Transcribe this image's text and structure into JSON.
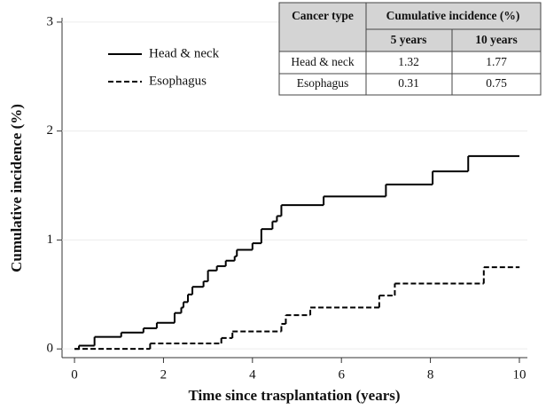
{
  "chart_data": {
    "type": "step",
    "xlabel": "Time since trasplantation (years)",
    "ylabel": "Cumulative incidence (%)",
    "xlim": [
      -0.28,
      10.18
    ],
    "ylim": [
      -0.08,
      3.04
    ],
    "xticks": [
      0,
      2,
      4,
      6,
      8,
      10
    ],
    "yticks": [
      0,
      1,
      2,
      3
    ],
    "grid": true,
    "legend_position": "upper left",
    "series": [
      {
        "name": "Head & neck",
        "color": "#000000",
        "line_style": "solid",
        "x": [
          0,
          0.1,
          0.45,
          1.05,
          1.55,
          1.85,
          2.25,
          2.4,
          2.45,
          2.55,
          2.65,
          2.9,
          3.0,
          3.2,
          3.4,
          3.6,
          3.65,
          4.0,
          4.2,
          4.45,
          4.55,
          4.65,
          5.6,
          7.0,
          8.05,
          8.85,
          10
        ],
        "values": [
          0,
          0.03,
          0.11,
          0.15,
          0.19,
          0.24,
          0.33,
          0.38,
          0.43,
          0.5,
          0.57,
          0.62,
          0.72,
          0.76,
          0.81,
          0.85,
          0.91,
          0.97,
          1.1,
          1.17,
          1.22,
          1.32,
          1.4,
          1.51,
          1.63,
          1.77,
          1.77
        ]
      },
      {
        "name": "Esophagus",
        "color": "#000000",
        "line_style": "dashed",
        "x": [
          0,
          1.7,
          3.3,
          3.55,
          4.65,
          4.75,
          5.3,
          6.85,
          7.2,
          9.2,
          10
        ],
        "values": [
          0,
          0.05,
          0.1,
          0.16,
          0.23,
          0.31,
          0.38,
          0.49,
          0.6,
          0.75,
          0.75
        ]
      }
    ],
    "table": {
      "header": [
        "Cancer type",
        "Cumulative incidence (%)"
      ],
      "subheader": [
        "5 years",
        "10 years"
      ],
      "rows": [
        [
          "Head & neck",
          1.32,
          1.77
        ],
        [
          "Esophagus",
          0.31,
          0.75
        ]
      ]
    }
  }
}
